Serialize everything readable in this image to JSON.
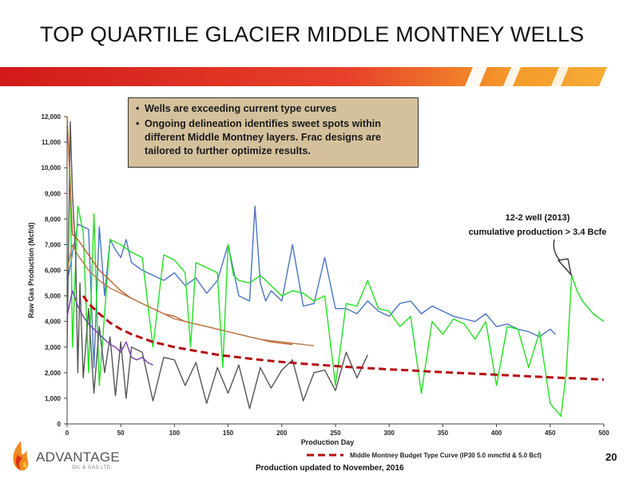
{
  "title": "TOP QUARTILE GLACIER MIDDLE MONTNEY WELLS",
  "callout": {
    "bullets": [
      "Wells are exceeding current type curves",
      "Ongoing delineation identifies sweet spots within different Middle Montney layers.  Frac designs are tailored to further optimize results."
    ]
  },
  "annotation": {
    "line1": "12-2 well (2013)",
    "line2": "cumulative production > 3.4 Bcfe"
  },
  "footer_note": "Production updated to November, 2016",
  "page_number": "20",
  "logo": {
    "word": "ADVANTAGE",
    "sub": "OIL & GAS LTD."
  },
  "colors": {
    "blue": "#4a74c4",
    "green": "#22e022",
    "dark_gray": "#555555",
    "orange": "#c0612a",
    "purple": "#7a3bb5",
    "tan": "#b87a4b",
    "type_curve": "#b30f12",
    "banner_red": "#d21a1a",
    "banner_orange": "#f59a2a"
  },
  "chart_data": {
    "type": "line",
    "xlabel": "Production  Day",
    "ylabel": "Raw Gas Production  (Mcf/d)",
    "xlim": [
      0,
      500
    ],
    "ylim": [
      0,
      12000
    ],
    "x_ticks": [
      "0",
      "50",
      "100",
      "150",
      "200",
      "250",
      "300",
      "350",
      "400",
      "450",
      "500"
    ],
    "y_ticks": [
      "0",
      "1,000",
      "2,000",
      "3,000",
      "4,000",
      "5,000",
      "6,000",
      "7,000",
      "8,000",
      "9,000",
      "10,000",
      "11,000",
      "12,000"
    ],
    "legend": {
      "label": "Middle Montney Budget Type Curve (IP30 5.0 mmcf/d & 5.0 Bcf)",
      "placement": "bottom"
    },
    "grid": false,
    "series": [
      {
        "color": "blue",
        "x": [
          0,
          10,
          20,
          25,
          30,
          35,
          40,
          45,
          50,
          55,
          60,
          70,
          80,
          90,
          100,
          110,
          120,
          130,
          140,
          150,
          160,
          170,
          175,
          180,
          185,
          190,
          200,
          210,
          220,
          230,
          240,
          250,
          260,
          270,
          280,
          290,
          300,
          310,
          320,
          330,
          340,
          350,
          360,
          370,
          380,
          390,
          400,
          410,
          420,
          430,
          440,
          450,
          455
        ],
        "y": [
          5500,
          7800,
          7600,
          2200,
          7700,
          5000,
          7200,
          6800,
          6500,
          7200,
          6300,
          6000,
          5800,
          5600,
          5900,
          5400,
          5700,
          5100,
          5600,
          7000,
          5000,
          4800,
          8500,
          5500,
          4800,
          5200,
          4800,
          7000,
          4600,
          4700,
          6500,
          4500,
          4500,
          4300,
          4800,
          4400,
          4200,
          4700,
          4800,
          4300,
          4600,
          4400,
          4200,
          4100,
          4000,
          4300,
          3800,
          3900,
          3700,
          3600,
          3400,
          3700,
          3500
        ]
      },
      {
        "color": "green",
        "x": [
          0,
          3,
          5,
          10,
          15,
          20,
          25,
          30,
          40,
          50,
          60,
          70,
          80,
          90,
          100,
          110,
          115,
          120,
          130,
          140,
          145,
          150,
          155,
          160,
          170,
          180,
          190,
          200,
          210,
          220,
          230,
          240,
          250,
          260,
          270,
          280,
          290,
          300,
          310,
          320,
          330,
          340,
          350,
          360,
          370,
          380,
          390,
          400,
          410,
          420,
          430,
          440,
          450,
          460,
          465,
          470,
          475,
          480,
          490,
          500
        ],
        "y": [
          12000,
          9500,
          3000,
          8500,
          7500,
          2000,
          8200,
          1500,
          7200,
          7000,
          6700,
          6500,
          3000,
          6600,
          6400,
          5900,
          3000,
          6300,
          6100,
          5900,
          2200,
          7000,
          5800,
          5600,
          5500,
          5800,
          5400,
          5000,
          5200,
          5100,
          4800,
          5000,
          1500,
          4700,
          4600,
          5600,
          4500,
          4400,
          3800,
          4200,
          1200,
          4000,
          3500,
          4100,
          3900,
          3300,
          4000,
          1500,
          3800,
          3700,
          2200,
          3600,
          800,
          300,
          2000,
          5800,
          5200,
          4800,
          4300,
          4000
        ]
      },
      {
        "color": "dark_gray",
        "x": [
          0,
          3,
          5,
          8,
          10,
          12,
          15,
          20,
          25,
          30,
          35,
          40,
          45,
          50,
          55,
          60,
          70,
          80,
          90,
          100,
          110,
          120,
          130,
          140,
          150,
          160,
          170,
          180,
          190,
          200,
          210,
          220,
          230,
          240,
          250,
          260,
          270,
          280
        ],
        "y": [
          3000,
          11800,
          9000,
          6500,
          2000,
          5500,
          1800,
          4500,
          1200,
          3800,
          2000,
          3400,
          1100,
          3200,
          1000,
          3000,
          2800,
          900,
          2600,
          2500,
          1500,
          2400,
          800,
          2200,
          1200,
          2300,
          600,
          2200,
          1400,
          2100,
          2500,
          900,
          2000,
          2100,
          1300,
          2800,
          1800,
          2700
        ]
      },
      {
        "color": "orange",
        "x": [
          0,
          5,
          10,
          20,
          30,
          40,
          50,
          60,
          70,
          80,
          90,
          100,
          110,
          120,
          130,
          140,
          150,
          160,
          170,
          180,
          190,
          200,
          210
        ],
        "y": [
          12000,
          7400,
          7200,
          6600,
          6000,
          5600,
          5200,
          4900,
          4700,
          4500,
          4300,
          4200,
          4000,
          3900,
          3800,
          3700,
          3600,
          3500,
          3400,
          3300,
          3200,
          3150,
          3100
        ]
      },
      {
        "color": "purple",
        "x": [
          0,
          5,
          10,
          15,
          20,
          25,
          30,
          35,
          40,
          45,
          50,
          55,
          60,
          65,
          70,
          75,
          80
        ],
        "y": [
          4200,
          5200,
          4600,
          4200,
          3900,
          3700,
          3500,
          3300,
          3100,
          3000,
          2800,
          3200,
          2600,
          2500,
          2600,
          2400,
          2300
        ]
      },
      {
        "color": "tan",
        "x": [
          0,
          5,
          10,
          20,
          30,
          40,
          50,
          60,
          70,
          80,
          90,
          100,
          110,
          120,
          130,
          140,
          150,
          160,
          170,
          180,
          190,
          200,
          210,
          220,
          230
        ],
        "y": [
          6000,
          7000,
          6600,
          6000,
          5600,
          5300,
          5100,
          4900,
          4700,
          4500,
          4300,
          4100,
          4000,
          3900,
          3800,
          3700,
          3600,
          3500,
          3400,
          3300,
          3250,
          3200,
          3150,
          3100,
          3050
        ]
      },
      {
        "name": "Middle Montney Budget Type Curve (IP30 5.0 mmcf/d & 5.0 Bcf)",
        "color": "type_curve",
        "dashed": true,
        "x": [
          15,
          20,
          30,
          40,
          50,
          60,
          70,
          80,
          90,
          100,
          120,
          140,
          160,
          180,
          200,
          220,
          240,
          260,
          280,
          300,
          320,
          340,
          360,
          380,
          400,
          420,
          440,
          460,
          480,
          500
        ],
        "y": [
          5000,
          4700,
          4300,
          3950,
          3700,
          3500,
          3350,
          3200,
          3100,
          3000,
          2850,
          2700,
          2600,
          2500,
          2420,
          2350,
          2290,
          2230,
          2180,
          2130,
          2090,
          2040,
          2000,
          1960,
          1920,
          1880,
          1840,
          1800,
          1770,
          1730
        ]
      }
    ]
  }
}
